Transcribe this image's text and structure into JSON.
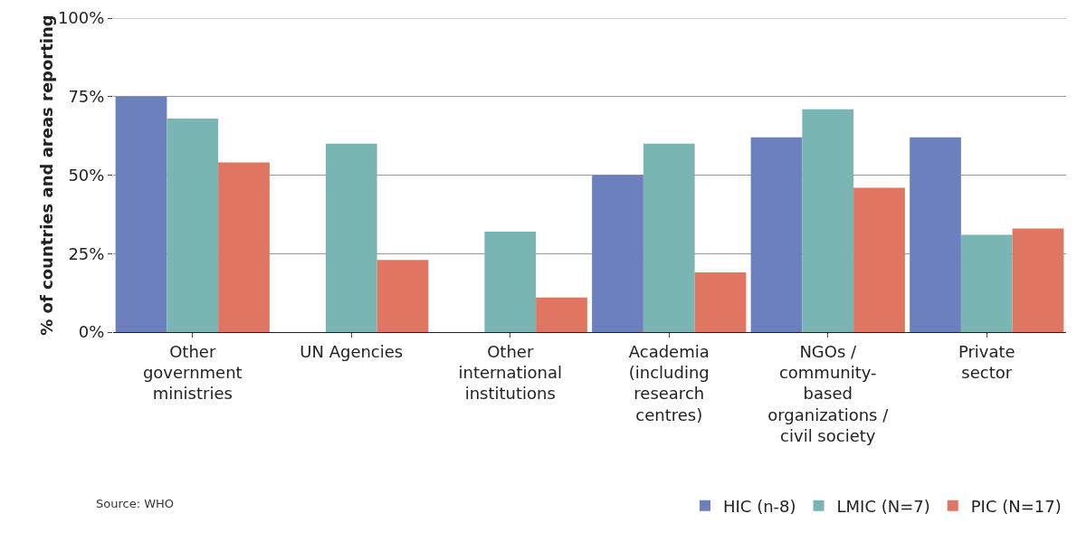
{
  "chart_data": {
    "type": "bar",
    "ylabel": "% of countries and areas reporting",
    "categories": [
      "Other\ngovernment\nministries",
      "UN Agencies",
      "Other\ninternational\ninstitutions",
      "Academia\n(including\nresearch\ncentres)",
      "NGOs /\ncommunity-\nbased\norganizations /\ncivil society",
      "Private\nsector"
    ],
    "series": [
      {
        "name": "HIC (n-8)",
        "color": "#6b80bd",
        "values": [
          75,
          0,
          0,
          50,
          62,
          62
        ]
      },
      {
        "name": "LMIC (N=7)",
        "color": "#78b5b3",
        "values": [
          68,
          60,
          32,
          60,
          71,
          31
        ]
      },
      {
        "name": "PIC (N=17)",
        "color": "#e07562",
        "values": [
          54,
          23,
          11,
          19,
          46,
          33
        ]
      }
    ],
    "ylim": [
      0,
      100
    ],
    "yticks": [
      {
        "value": 0,
        "label": "0%"
      },
      {
        "value": 25,
        "label": "25%"
      },
      {
        "value": 50,
        "label": "50%"
      },
      {
        "value": 75,
        "label": "75%"
      },
      {
        "value": 100,
        "label": "100%"
      }
    ],
    "grid": "y",
    "legend": "bottom right",
    "annotations": [
      "Source: WHO"
    ]
  }
}
